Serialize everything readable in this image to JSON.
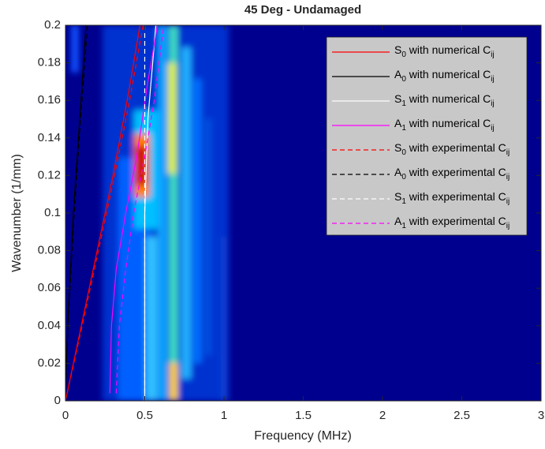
{
  "chart_data": {
    "type": "line",
    "title": "45 Deg - Undamaged",
    "xlabel": "Frequency (MHz)",
    "ylabel": "Wavenumber (1/mm)",
    "xlim": [
      0,
      3
    ],
    "ylim": [
      0,
      0.2
    ],
    "xticks": [
      0,
      0.5,
      1,
      1.5,
      2,
      2.5,
      3
    ],
    "yticks": [
      0,
      0.02,
      0.04,
      0.06,
      0.08,
      0.1,
      0.12,
      0.14,
      0.16,
      0.18,
      0.2
    ],
    "legend": "upper right",
    "series": [
      {
        "name": "S0 with numerical Cij",
        "color": "#ff0000",
        "linestyle": "solid",
        "x": [
          0,
          0.1,
          0.2,
          0.3,
          0.4,
          0.47
        ],
        "values": [
          0,
          0.04,
          0.08,
          0.12,
          0.165,
          0.2
        ]
      },
      {
        "name": "A0 with numerical Cij",
        "color": "#000000",
        "linestyle": "solid",
        "x": [
          0,
          0.005,
          0.02,
          0.05,
          0.09,
          0.13
        ],
        "values": [
          0,
          0.02,
          0.05,
          0.1,
          0.15,
          0.2
        ]
      },
      {
        "name": "S1 with numerical Cij",
        "color": "#ffffff",
        "linestyle": "solid",
        "x": [
          0.5,
          0.5,
          0.52,
          0.57
        ],
        "values": [
          0,
          0.1,
          0.15,
          0.2
        ]
      },
      {
        "name": "A1 with numerical Cij",
        "color": "#ff00ff",
        "linestyle": "solid",
        "x": [
          0.28,
          0.29,
          0.32,
          0.38,
          0.45,
          0.52,
          0.58
        ],
        "values": [
          0.004,
          0.04,
          0.07,
          0.1,
          0.13,
          0.17,
          0.2
        ]
      },
      {
        "name": "S0 with experimental Cij",
        "color": "#ff0000",
        "linestyle": "dashed",
        "x": [
          0,
          0.1,
          0.2,
          0.3,
          0.4,
          0.49
        ],
        "values": [
          0,
          0.038,
          0.077,
          0.116,
          0.158,
          0.2
        ]
      },
      {
        "name": "A0 with experimental Cij",
        "color": "#000000",
        "linestyle": "dashed",
        "x": [
          0,
          0.006,
          0.022,
          0.055,
          0.095,
          0.14
        ],
        "values": [
          0,
          0.02,
          0.05,
          0.1,
          0.15,
          0.2
        ]
      },
      {
        "name": "S1 with experimental Cij",
        "color": "#ffffff",
        "linestyle": "dashed",
        "x": [
          0.5,
          0.5
        ],
        "values": [
          0,
          0.2
        ]
      },
      {
        "name": "A1 with experimental Cij",
        "color": "#ff00ff",
        "linestyle": "dashed",
        "x": [
          0.32,
          0.34,
          0.38,
          0.43,
          0.5,
          0.56,
          0.62
        ],
        "values": [
          0.004,
          0.04,
          0.07,
          0.1,
          0.13,
          0.16,
          0.2
        ]
      }
    ]
  }
}
